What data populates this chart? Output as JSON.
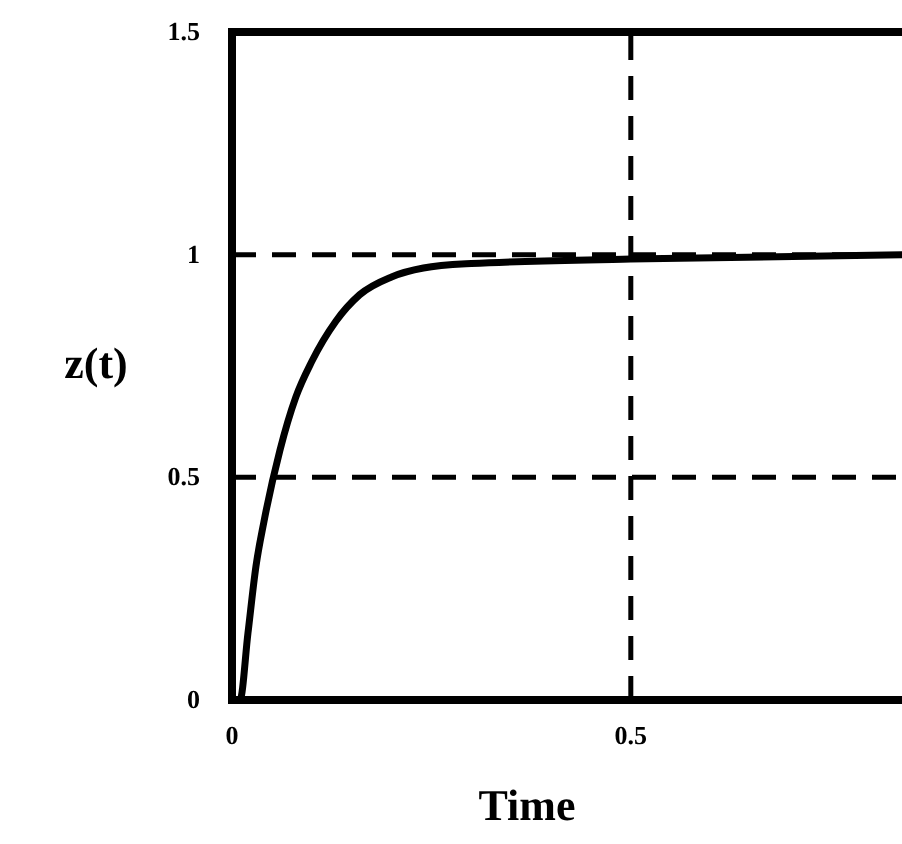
{
  "chart_data": {
    "type": "line",
    "xlabel": "Time",
    "ylabel": "z(t)",
    "xlim": [
      0,
      0.84
    ],
    "ylim": [
      0,
      1.5
    ],
    "xticks": [
      0,
      0.5
    ],
    "yticks": [
      0,
      0.5,
      1,
      1.5
    ],
    "grid": false,
    "marker": "none",
    "line_style": "solid",
    "series": [
      {
        "color": "#000000",
        "x": [
          0,
          0.01,
          0.02,
          0.03,
          0.04,
          0.06,
          0.08,
          0.1,
          0.13,
          0.16,
          0.2,
          0.24,
          0.3,
          0.5,
          0.84
        ],
        "values": [
          0,
          0,
          0.15,
          0.3,
          0.4,
          0.56,
          0.68,
          0.76,
          0.85,
          0.91,
          0.95,
          0.97,
          0.98,
          0.99,
          1.0
        ]
      }
    ],
    "ref_lines": [
      {
        "axis": "y",
        "value": 1,
        "line_style": "dashed"
      },
      {
        "axis": "y",
        "value": 0.5,
        "line_style": "dashed"
      },
      {
        "axis": "x",
        "value": 0.5,
        "line_style": "dashed"
      }
    ]
  }
}
